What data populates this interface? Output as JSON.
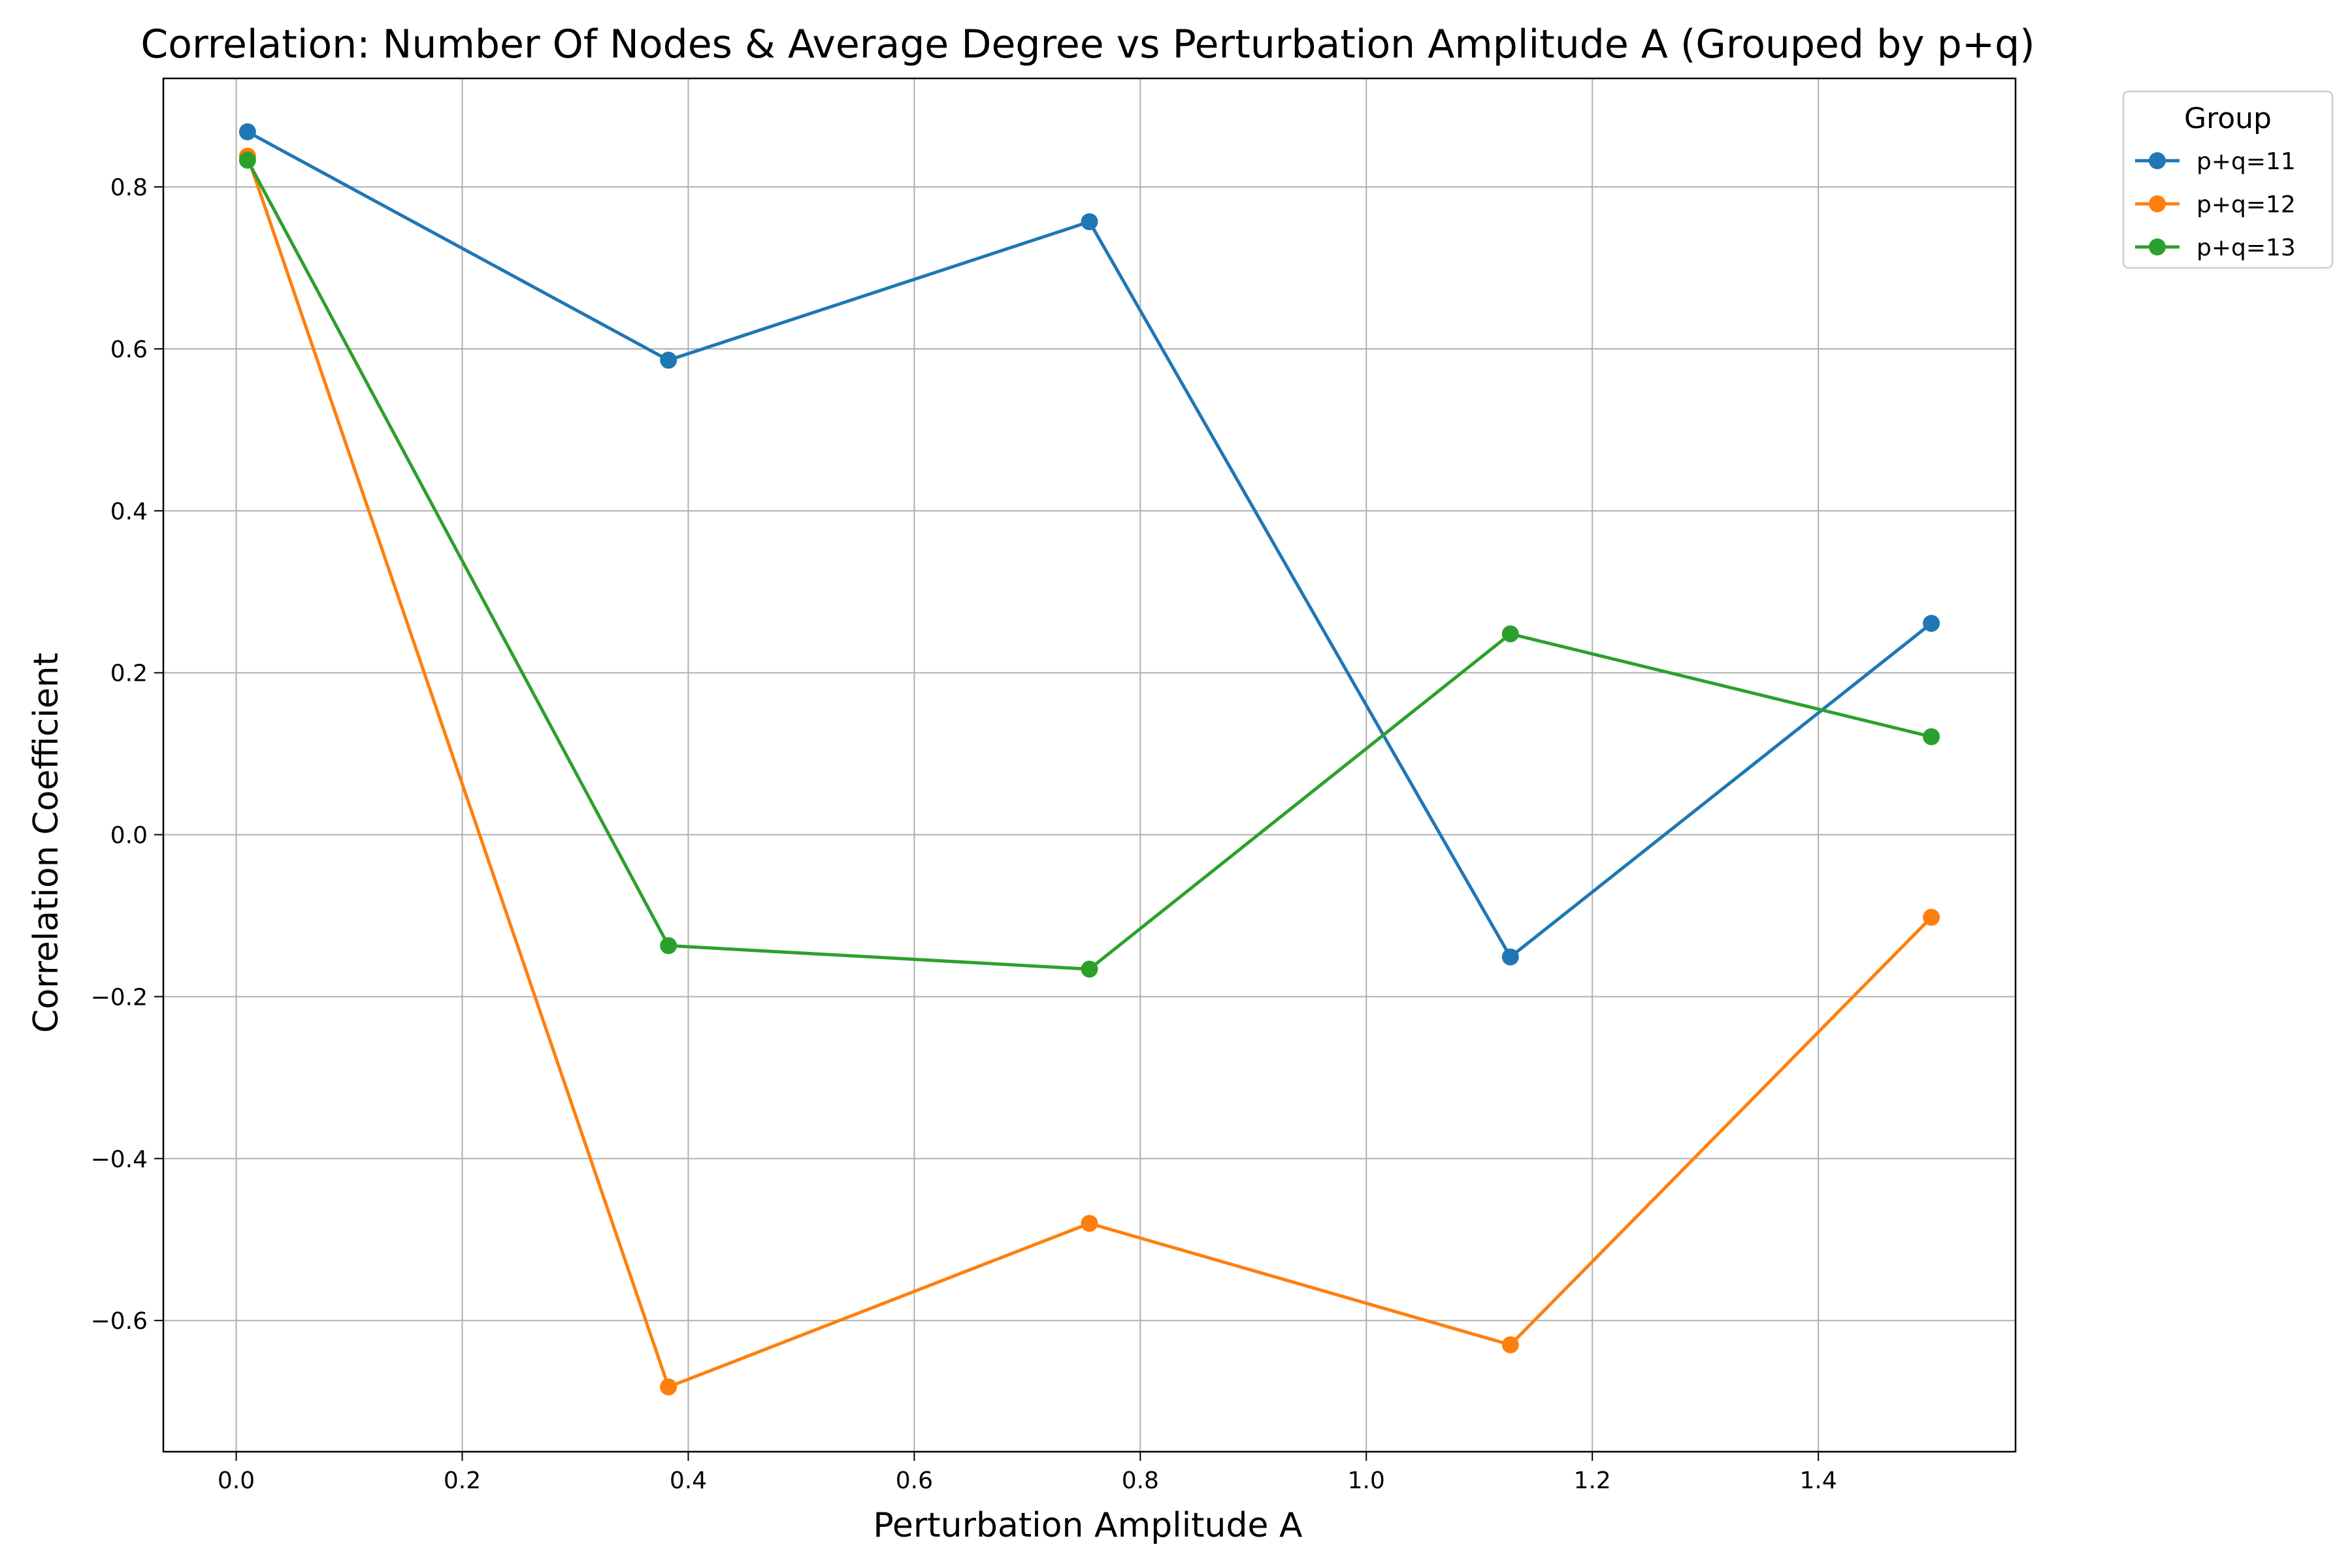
{
  "chart_data": {
    "type": "line",
    "title": "Correlation: Number Of Nodes & Average Degree vs Perturbation Amplitude A (Grouped by p+q)",
    "xlabel": "Perturbation Amplitude A",
    "ylabel": "Correlation Coefficient",
    "x": [
      0.01,
      0.3825,
      0.755,
      1.1275,
      1.5
    ],
    "xlim": [
      -0.0645,
      1.5745
    ],
    "ylim": [
      -0.762,
      0.934
    ],
    "xticks": [
      0.0,
      0.2,
      0.4,
      0.6,
      0.8,
      1.0,
      1.2,
      1.4
    ],
    "xtick_labels": [
      "0.0",
      "0.2",
      "0.4",
      "0.6",
      "0.8",
      "1.0",
      "1.2",
      "1.4"
    ],
    "yticks": [
      -0.6,
      -0.4,
      -0.2,
      0.0,
      0.2,
      0.4,
      0.6,
      0.8
    ],
    "ytick_labels": [
      "−0.6",
      "−0.4",
      "−0.2",
      "0.0",
      "0.2",
      "0.4",
      "0.6",
      "0.8"
    ],
    "grid": true,
    "legend": {
      "title": "Group",
      "placement": "outside-top-right"
    },
    "series": [
      {
        "name": "p+q=11",
        "color": "#1f77b4",
        "values": [
          0.868,
          0.586,
          0.757,
          -0.151,
          0.261
        ]
      },
      {
        "name": "p+q=12",
        "color": "#ff7f0e",
        "values": [
          0.838,
          -0.682,
          -0.48,
          -0.63,
          -0.102
        ]
      },
      {
        "name": "p+q=13",
        "color": "#2ca02c",
        "values": [
          0.833,
          -0.137,
          -0.166,
          0.248,
          0.121
        ]
      }
    ]
  }
}
